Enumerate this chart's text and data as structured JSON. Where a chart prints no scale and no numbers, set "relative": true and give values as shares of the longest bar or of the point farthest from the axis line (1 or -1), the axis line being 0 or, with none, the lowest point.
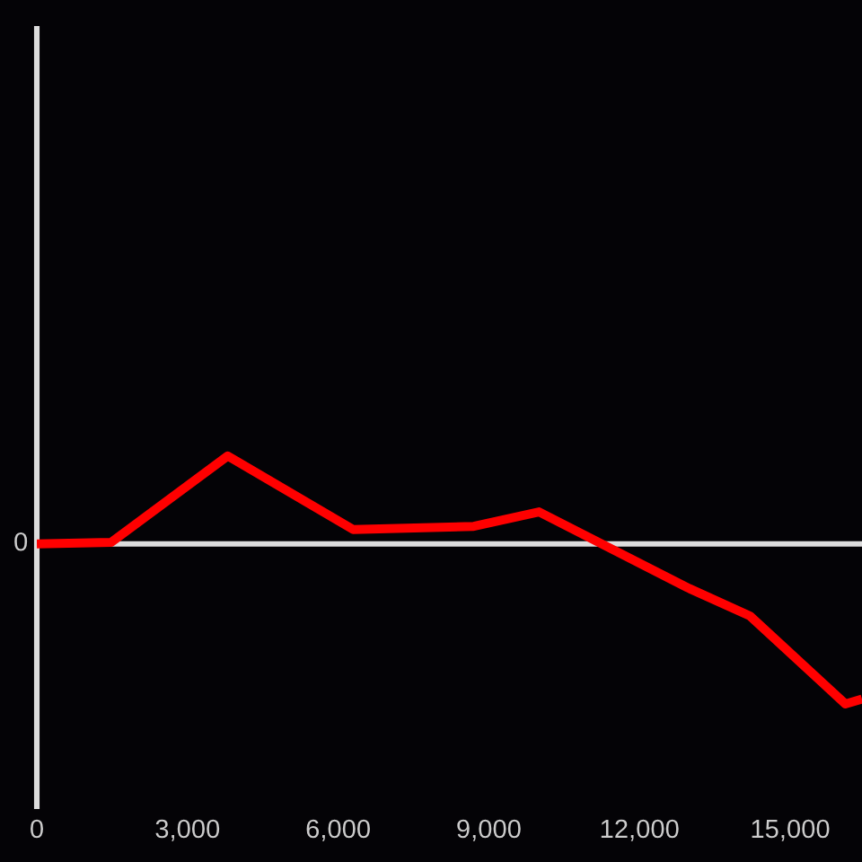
{
  "chart_data": {
    "type": "line",
    "x": [
      0,
      1480,
      3800,
      6300,
      8700,
      10000,
      13000,
      14200,
      16100,
      16430
    ],
    "series": [
      {
        "color": "#ff0000",
        "values": [
          0,
          0.01,
          0.55,
          0.09,
          0.11,
          0.2,
          -0.28,
          -0.45,
          -1,
          -0.97
        ]
      }
    ],
    "relative": true,
    "xlim": [
      0,
      16430
    ],
    "xticks": [
      0,
      {
        "value": 3000,
        "label": "3,000"
      },
      {
        "value": 6000,
        "label": "6,000"
      },
      {
        "value": 9000,
        "label": "9,000"
      },
      {
        "value": 12000,
        "label": "12,000"
      },
      {
        "value": 15000,
        "label": "15,000"
      }
    ],
    "ref_lines": [
      {
        "axis": "y",
        "value": 0,
        "label": "0",
        "color": "#dddddd"
      }
    ],
    "tick_labels": "x",
    "line_style": "solid"
  }
}
